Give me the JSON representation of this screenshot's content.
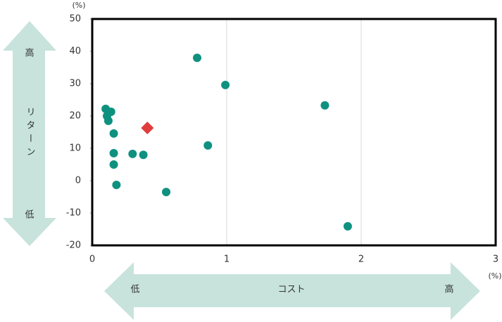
{
  "chart_data": {
    "type": "scatter",
    "series": [
      {
        "color": "#0f9180",
        "marker": "circle",
        "x": [
          0.1,
          0.14,
          0.11,
          0.12,
          0.16,
          0.16,
          0.16,
          0.18,
          0.3,
          0.38,
          0.55,
          0.78,
          0.99,
          0.86,
          1.73,
          1.9
        ],
        "values": [
          22.2,
          21.3,
          20,
          18.5,
          14.6,
          8.5,
          5,
          -1.3,
          8.3,
          8,
          -3.5,
          38,
          29.6,
          10.9,
          23.3,
          -14.1
        ]
      },
      {
        "color": "#e23b3b",
        "marker": "diamond",
        "x": [
          0.41
        ],
        "values": [
          16.3
        ]
      }
    ],
    "xlim": [
      0,
      3
    ],
    "xticks": [
      0,
      1,
      2,
      3
    ],
    "ylim": [
      -20,
      50
    ],
    "yticks": [
      50,
      40,
      30,
      20,
      10,
      0,
      -10,
      -20
    ],
    "x_unit": "(%)",
    "y_unit": "(%)",
    "y_arrow": {
      "high": "高",
      "label": "リターン",
      "low": "低"
    },
    "x_arrow": {
      "low": "低",
      "label": "コスト",
      "high": "高"
    },
    "grid": "x"
  }
}
